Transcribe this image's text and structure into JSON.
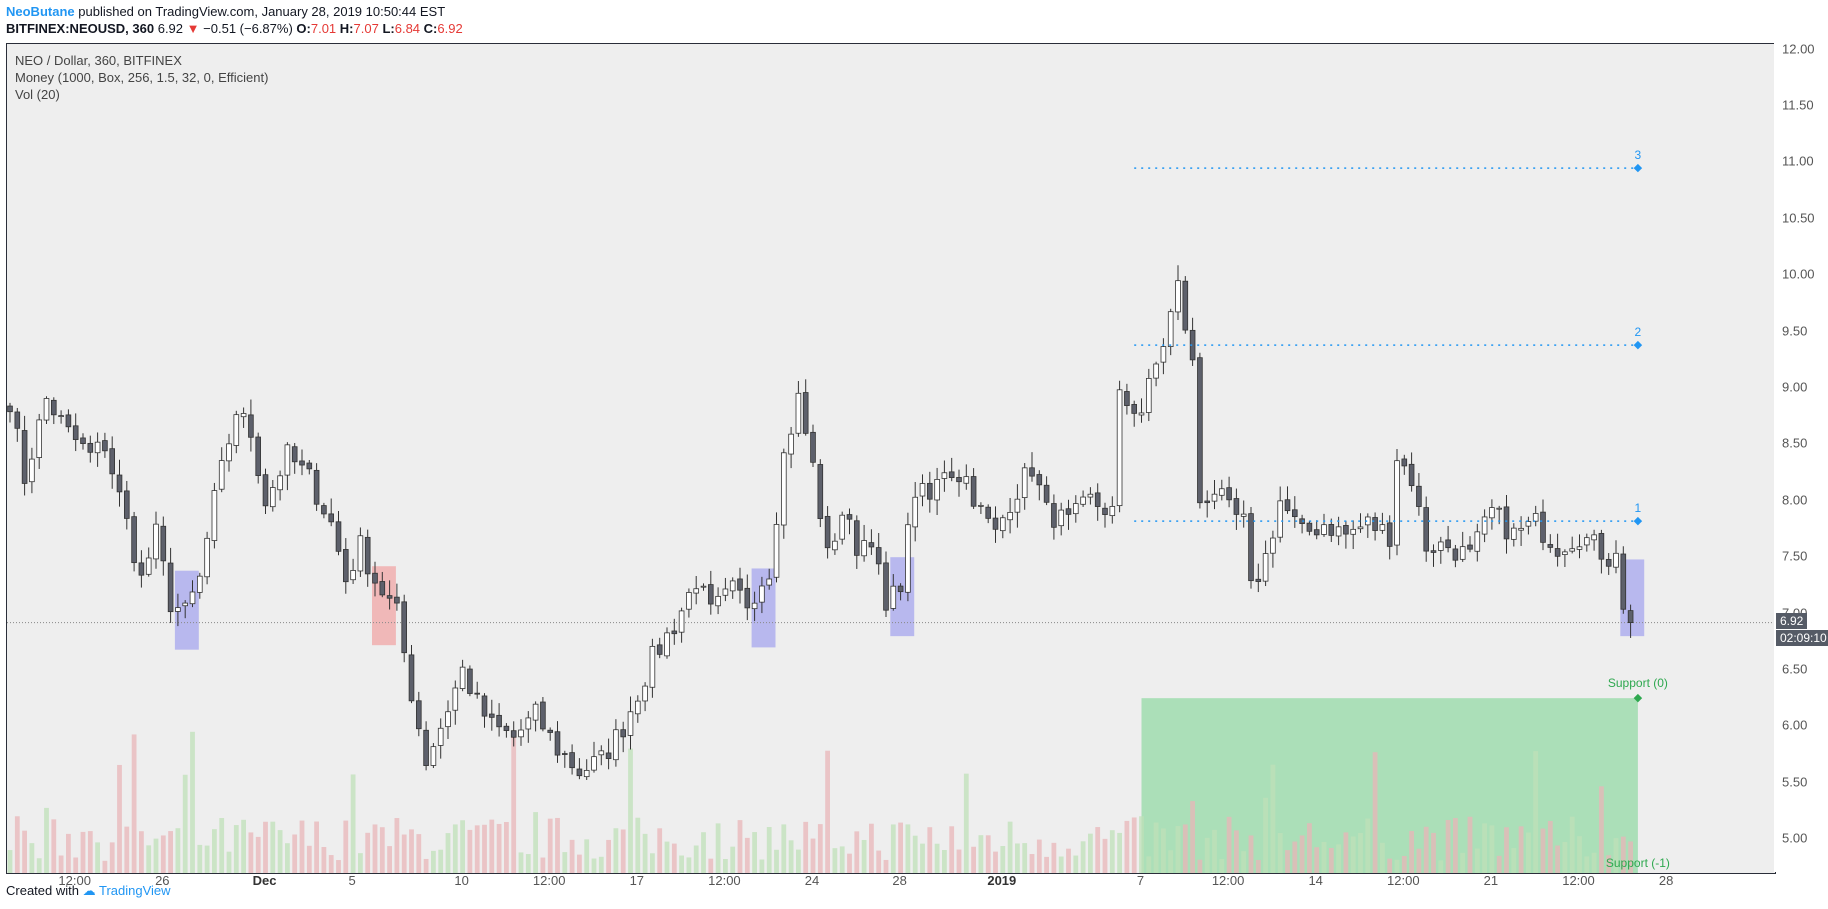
{
  "header": {
    "author": "NeoButane",
    "published": "published on TradingView.com, January 28, 2019 10:50:44 EST",
    "symbol": "BITFINEX:NEOUSD, 360",
    "last": "6.92",
    "change": "−0.51 (−6.87%)",
    "o_label": "O:",
    "o_value": "7.01",
    "h_label": "H:",
    "h_value": "7.07",
    "l_label": "L:",
    "l_value": "6.84",
    "c_label": "C:",
    "c_value": "6.92"
  },
  "legend": {
    "line1": "NEO / Dollar, 360, BITFINEX",
    "line2": "Money (1000, Box, 256, 1.5, 32, 0, Efficient)",
    "line3": "Vol (20)"
  },
  "price_tag": "6.92",
  "time_tag": "02:09:10",
  "footer": {
    "created": "Created with",
    "brand": "TradingView"
  },
  "colors": {
    "up_body": "#ffffff",
    "down_body": "#5d606b",
    "wick": "#333333",
    "vol_up": "#bfe0b8",
    "vol_down": "#e8b5b8",
    "zone_blue": "#aaaaee",
    "zone_red": "#f0aaaa",
    "support_zone": "#9fdcae",
    "target_line": "#2196f3",
    "support_text": "#2ea84f"
  },
  "chart_data": {
    "type": "candlestick",
    "title": "NEO / Dollar, 360, BITFINEX",
    "ylim": [
      4.7,
      12.05
    ],
    "y_ticks": [
      5.0,
      5.5,
      6.0,
      6.5,
      7.0,
      7.5,
      8.0,
      8.5,
      9.0,
      9.5,
      10.0,
      10.5,
      11.0,
      11.5,
      12.0
    ],
    "y_tick_labels": [
      "5.00",
      "5.50",
      "6.00",
      "6.50",
      "7.00",
      "7.50",
      "8.00",
      "8.50",
      "9.00",
      "9.50",
      "10.00",
      "10.50",
      "11.00",
      "11.50",
      "12.00"
    ],
    "x_ticks": [
      {
        "label": "12:00",
        "i": 9
      },
      {
        "label": "26",
        "i": 21
      },
      {
        "label": "Dec",
        "i": 35,
        "strong": true
      },
      {
        "label": "5",
        "i": 47
      },
      {
        "label": "10",
        "i": 62
      },
      {
        "label": "12:00",
        "i": 74
      },
      {
        "label": "17",
        "i": 86
      },
      {
        "label": "12:00",
        "i": 98
      },
      {
        "label": "24",
        "i": 110
      },
      {
        "label": "28",
        "i": 122
      },
      {
        "label": "2019",
        "i": 136,
        "strong": true
      },
      {
        "label": "7",
        "i": 155
      },
      {
        "label": "12:00",
        "i": 167
      },
      {
        "label": "14",
        "i": 179
      },
      {
        "label": "12:00",
        "i": 191
      },
      {
        "label": "21",
        "i": 203
      },
      {
        "label": "12:00",
        "i": 215
      },
      {
        "label": "28",
        "i": 227
      }
    ],
    "n_bars": 229,
    "keyframes": [
      [
        0,
        8.9
      ],
      [
        2,
        8.2
      ],
      [
        5,
        8.9
      ],
      [
        8,
        8.6
      ],
      [
        11,
        8.4
      ],
      [
        13,
        8.5
      ],
      [
        16,
        7.8
      ],
      [
        18,
        7.3
      ],
      [
        20,
        7.7
      ],
      [
        22,
        7.1
      ],
      [
        24,
        7.0
      ],
      [
        26,
        7.3
      ],
      [
        28,
        8.0
      ],
      [
        31,
        8.8
      ],
      [
        33,
        8.6
      ],
      [
        35,
        8.0
      ],
      [
        38,
        8.4
      ],
      [
        41,
        8.2
      ],
      [
        44,
        7.8
      ],
      [
        46,
        7.3
      ],
      [
        48,
        7.6
      ],
      [
        50,
        7.3
      ],
      [
        53,
        7.0
      ],
      [
        55,
        6.3
      ],
      [
        57,
        5.7
      ],
      [
        59,
        6.0
      ],
      [
        62,
        6.5
      ],
      [
        64,
        6.2
      ],
      [
        66,
        6.0
      ],
      [
        69,
        5.9
      ],
      [
        72,
        6.1
      ],
      [
        75,
        5.8
      ],
      [
        78,
        5.6
      ],
      [
        81,
        5.7
      ],
      [
        84,
        6.0
      ],
      [
        86,
        6.3
      ],
      [
        88,
        6.6
      ],
      [
        91,
        6.9
      ],
      [
        94,
        7.3
      ],
      [
        96,
        7.0
      ],
      [
        99,
        7.2
      ],
      [
        101,
        7.1
      ],
      [
        104,
        7.4
      ],
      [
        106,
        8.4
      ],
      [
        108,
        8.9
      ],
      [
        110,
        8.3
      ],
      [
        112,
        7.5
      ],
      [
        114,
        7.9
      ],
      [
        116,
        7.6
      ],
      [
        118,
        7.7
      ],
      [
        120,
        7.0
      ],
      [
        122,
        7.3
      ],
      [
        124,
        8.1
      ],
      [
        126,
        8.0
      ],
      [
        128,
        8.3
      ],
      [
        131,
        8.2
      ],
      [
        133,
        7.9
      ],
      [
        135,
        7.7
      ],
      [
        137,
        8.0
      ],
      [
        140,
        8.3
      ],
      [
        142,
        7.9
      ],
      [
        145,
        7.8
      ],
      [
        148,
        8.0
      ],
      [
        151,
        7.9
      ],
      [
        152,
        8.9
      ],
      [
        155,
        8.8
      ],
      [
        158,
        9.4
      ],
      [
        160,
        9.9
      ],
      [
        162,
        9.2
      ],
      [
        163,
        8.0
      ],
      [
        165,
        8.1
      ],
      [
        167,
        7.9
      ],
      [
        169,
        7.8
      ],
      [
        170,
        7.2
      ],
      [
        172,
        7.5
      ],
      [
        174,
        8.0
      ],
      [
        177,
        7.7
      ],
      [
        180,
        7.8
      ],
      [
        183,
        7.7
      ],
      [
        186,
        7.8
      ],
      [
        189,
        7.7
      ],
      [
        190,
        8.4
      ],
      [
        192,
        8.2
      ],
      [
        194,
        7.6
      ],
      [
        197,
        7.6
      ],
      [
        200,
        7.5
      ],
      [
        203,
        7.9
      ],
      [
        206,
        7.7
      ],
      [
        209,
        7.8
      ],
      [
        212,
        7.6
      ],
      [
        215,
        7.7
      ],
      [
        217,
        7.6
      ],
      [
        219,
        7.5
      ],
      [
        220,
        7.6
      ],
      [
        221,
        7.0
      ],
      [
        222,
        6.92
      ]
    ],
    "zones": [
      {
        "kind": "blue",
        "from": 23,
        "to": 26,
        "y1": 7.38,
        "y2": 6.68
      },
      {
        "kind": "red",
        "from": 50,
        "to": 53,
        "y1": 7.42,
        "y2": 6.72
      },
      {
        "kind": "blue",
        "from": 102,
        "to": 105,
        "y1": 7.4,
        "y2": 6.7
      },
      {
        "kind": "blue",
        "from": 121,
        "to": 124,
        "y1": 7.5,
        "y2": 6.8
      },
      {
        "kind": "blue",
        "from": 221,
        "to": 224,
        "y1": 7.48,
        "y2": 6.8
      }
    ],
    "targets": [
      {
        "label": "3",
        "price": 10.95,
        "from": 154,
        "to": 223
      },
      {
        "label": "2",
        "price": 9.38,
        "from": 154,
        "to": 223
      },
      {
        "label": "1",
        "price": 7.82,
        "from": 154,
        "to": 223
      }
    ],
    "support": {
      "label_top": "Support (0)",
      "label_bottom": "Support (-1)",
      "top": 6.25,
      "bottom": 4.7,
      "from": 155,
      "to": 223
    },
    "last_price": 6.92
  }
}
